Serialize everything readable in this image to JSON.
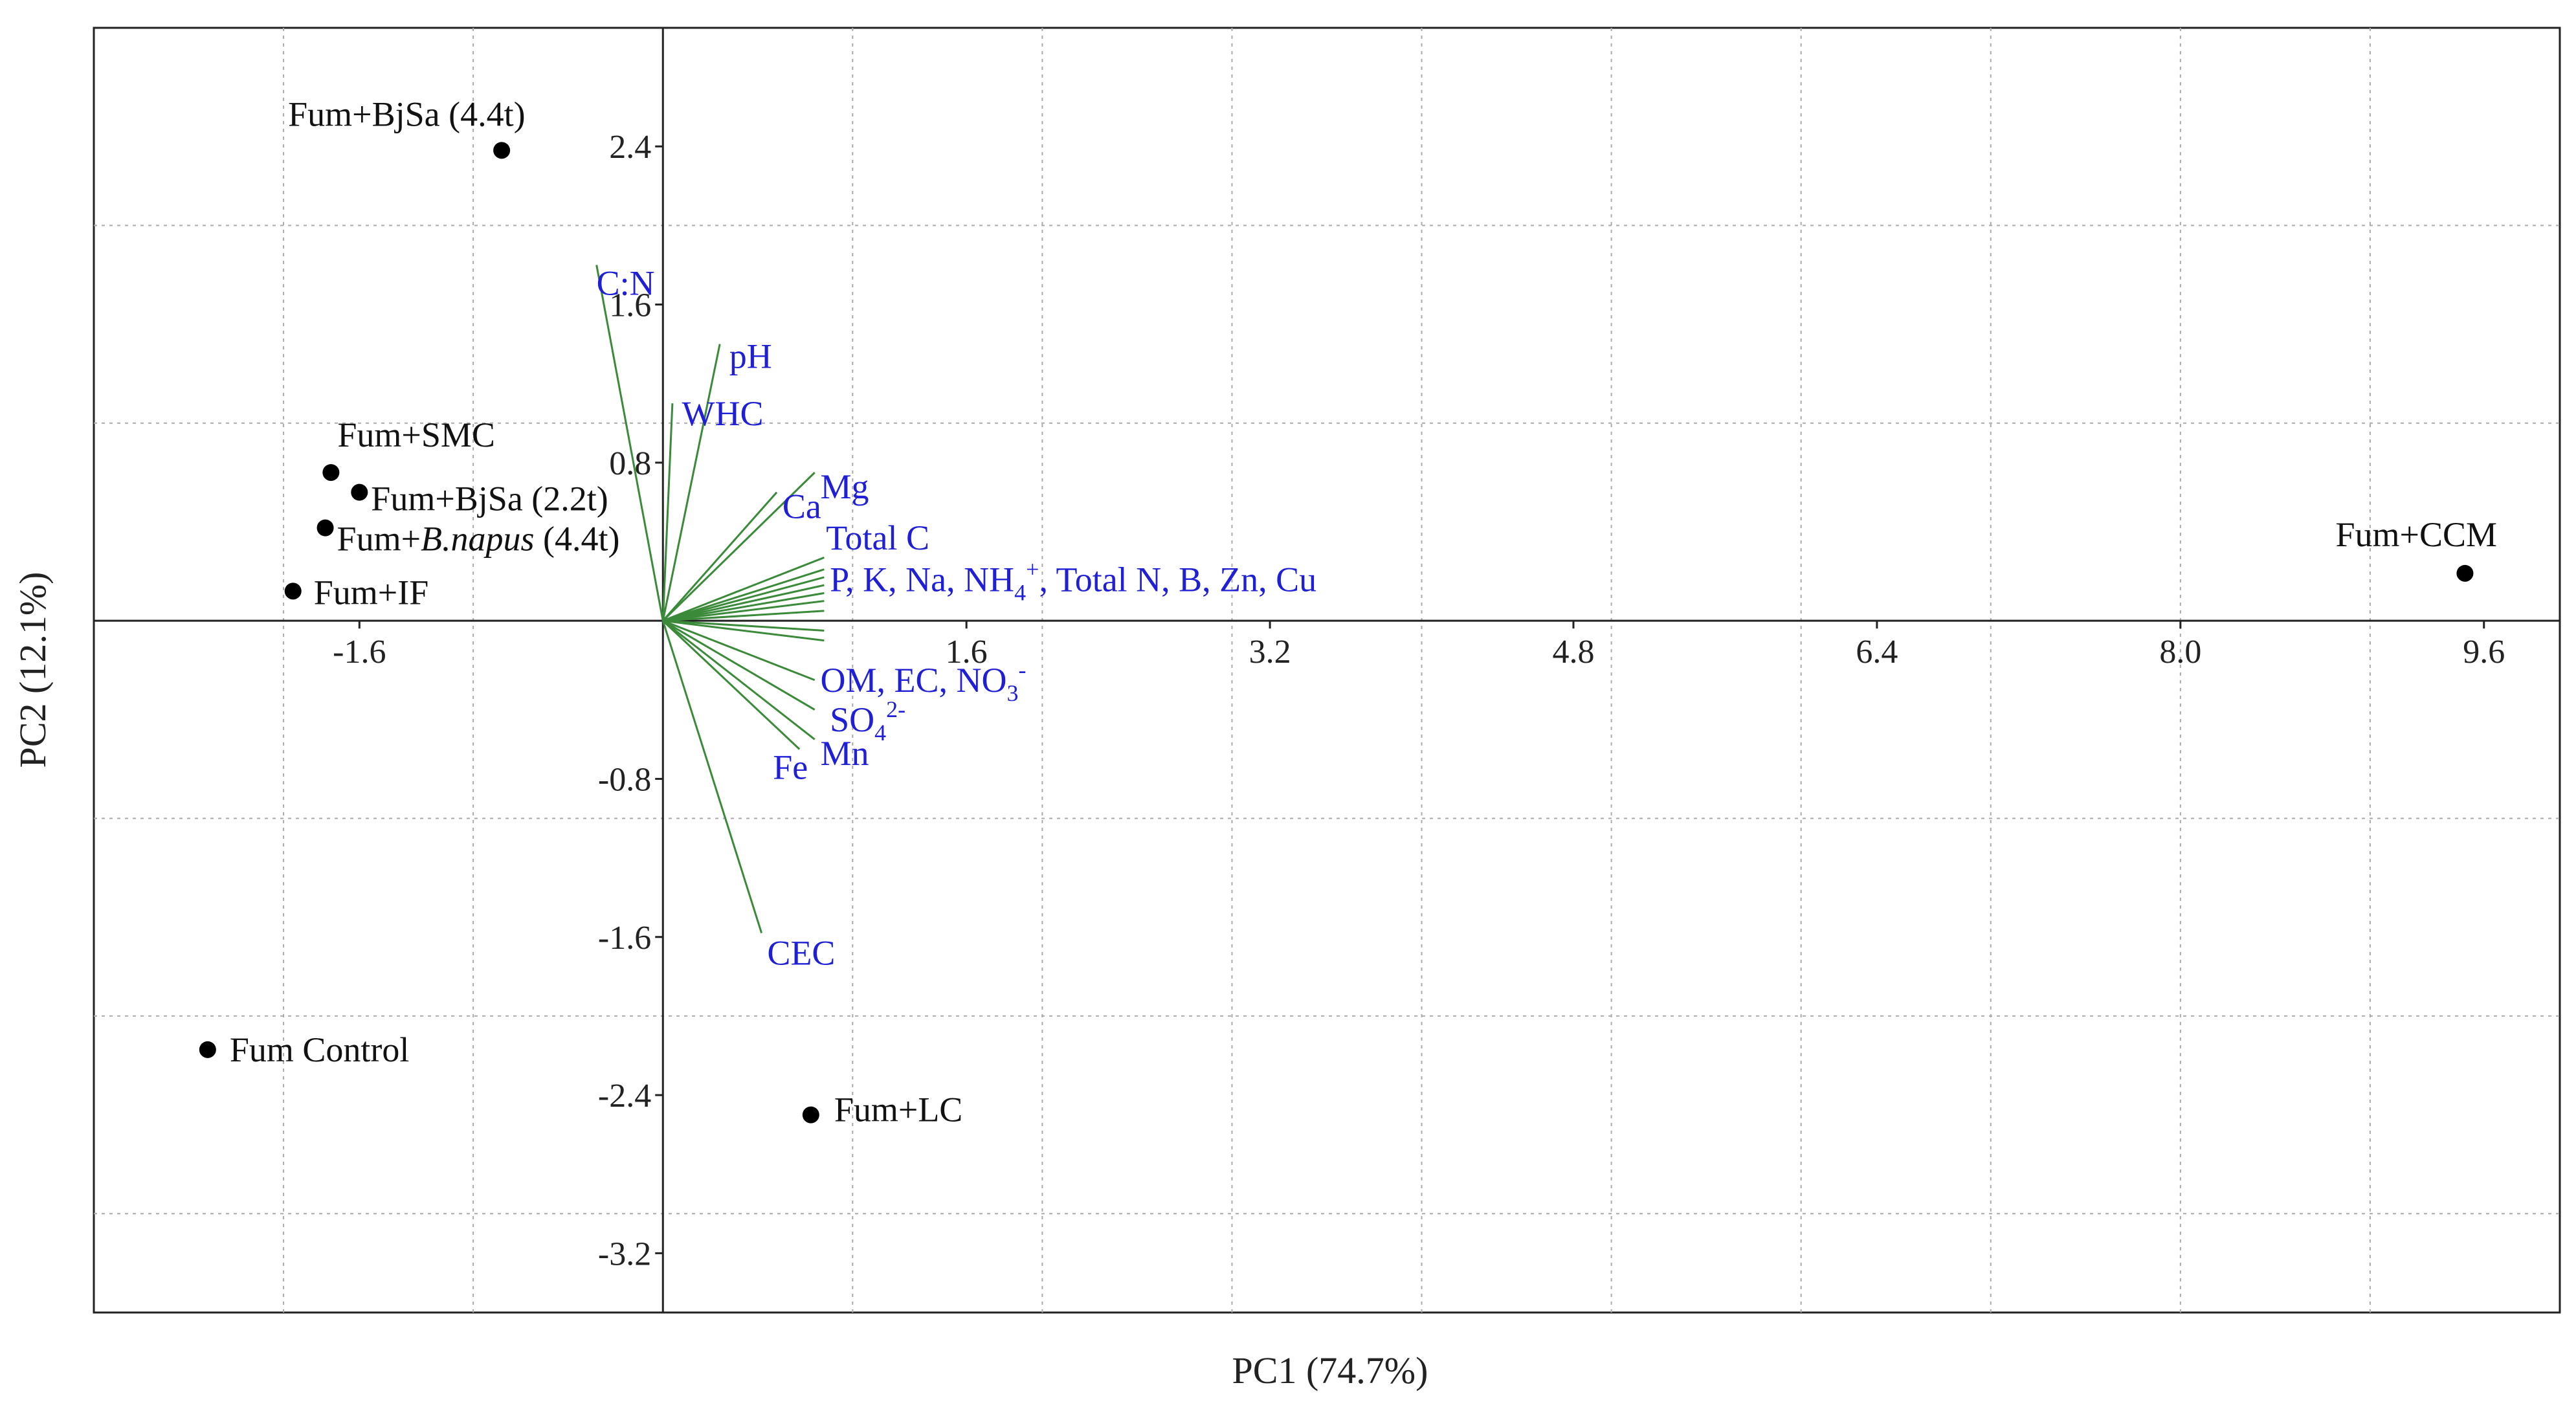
{
  "chart_data": {
    "type": "scatter",
    "subtype": "pca-biplot",
    "title": "",
    "xlabel": "PC1 (74.7%)",
    "ylabel": "PC2 (12.1%)",
    "xlim": [
      -3.0,
      10.0
    ],
    "ylim": [
      -3.5,
      3.0
    ],
    "grid": true,
    "x_ticks": [
      {
        "value": -1.6,
        "label": "-1.6"
      },
      {
        "value": 1.6,
        "label": "1.6"
      },
      {
        "value": 3.2,
        "label": "3.2"
      },
      {
        "value": 4.8,
        "label": "4.8"
      },
      {
        "value": 6.4,
        "label": "6.4"
      },
      {
        "value": 8.0,
        "label": "8.0"
      },
      {
        "value": 9.6,
        "label": "9.6"
      }
    ],
    "y_ticks": [
      {
        "value": 2.4,
        "label": "2.4"
      },
      {
        "value": 1.6,
        "label": "1.6"
      },
      {
        "value": 0.8,
        "label": "0.8"
      },
      {
        "value": -0.8,
        "label": "-0.8"
      },
      {
        "value": -1.6,
        "label": "-1.6"
      },
      {
        "value": -2.4,
        "label": "-2.4"
      },
      {
        "value": -3.2,
        "label": "-3.2"
      }
    ],
    "x_grid": [
      -2.0,
      -1.0,
      0.0,
      1.0,
      2.0,
      3.0,
      4.0,
      5.0,
      6.0,
      7.0,
      8.0,
      9.0
    ],
    "y_grid": [
      2.0,
      1.0,
      0.0,
      -1.0,
      -2.0,
      -3.0
    ],
    "points": [
      {
        "name": "Fum+BjSa (4.4t)",
        "x": -0.85,
        "y": 2.38
      },
      {
        "name": "Fum+SMC",
        "x": -1.75,
        "y": 0.75
      },
      {
        "name": "Fum+BjSa (2.2t)",
        "x": -1.6,
        "y": 0.65
      },
      {
        "name": "Fum+",
        "name_italic": "B.napus",
        "name_suffix": " (4.4t)",
        "x": -1.78,
        "y": 0.47
      },
      {
        "name": "Fum+IF",
        "x": -1.95,
        "y": 0.15
      },
      {
        "name": "Fum+CCM",
        "x": 9.5,
        "y": 0.24
      },
      {
        "name": "Fum Control",
        "x": -2.4,
        "y": -2.17
      },
      {
        "name": "Fum+LC",
        "x": 0.78,
        "y": -2.5
      }
    ],
    "vectors": [
      {
        "x": -0.35,
        "y": 1.8
      },
      {
        "x": 0.05,
        "y": 1.1
      },
      {
        "x": 0.3,
        "y": 1.4
      },
      {
        "x": 0.6,
        "y": 0.65
      },
      {
        "x": 0.8,
        "y": 0.75
      },
      {
        "x": 0.85,
        "y": 0.32
      },
      {
        "x": 0.85,
        "y": 0.26
      },
      {
        "x": 0.85,
        "y": 0.22
      },
      {
        "x": 0.85,
        "y": 0.18
      },
      {
        "x": 0.85,
        "y": 0.14
      },
      {
        "x": 0.85,
        "y": 0.1
      },
      {
        "x": 0.85,
        "y": 0.05
      },
      {
        "x": 0.85,
        "y": -0.05
      },
      {
        "x": 0.85,
        "y": -0.1
      },
      {
        "x": 0.8,
        "y": -0.3
      },
      {
        "x": 0.8,
        "y": -0.45
      },
      {
        "x": 0.8,
        "y": -0.6
      },
      {
        "x": 0.72,
        "y": -0.65
      },
      {
        "x": 0.52,
        "y": -1.58
      }
    ],
    "vector_labels": [
      {
        "text": "C:N",
        "x": -0.35,
        "y": 1.65
      },
      {
        "text": "pH",
        "x": 0.35,
        "y": 1.28
      },
      {
        "text": "WHC",
        "x": 0.1,
        "y": 0.99
      },
      {
        "text": "Mg",
        "x": 0.83,
        "y": 0.62
      },
      {
        "text": "Ca",
        "x": 0.63,
        "y": 0.52
      },
      {
        "text": "Total C",
        "x": 0.86,
        "y": 0.36
      },
      {
        "text": "P, K, Na, NH4+, Total N, B, Zn, Cu",
        "x": 0.88,
        "y": 0.15
      },
      {
        "text": "OM, EC, NO3-",
        "x": 0.83,
        "y": -0.36
      },
      {
        "text": "SO42-",
        "x": 0.88,
        "y": -0.56
      },
      {
        "text": "Mn",
        "x": 0.83,
        "y": -0.73
      },
      {
        "text": "Fe",
        "x": 0.58,
        "y": -0.8
      },
      {
        "text": "CEC",
        "x": 0.55,
        "y": -1.74
      }
    ],
    "colors": {
      "points": "#000000",
      "vectors": "#3a8a3a",
      "vector_labels": "#1f1fd6",
      "grid": "#aaaaaa",
      "frame": "#222222"
    }
  }
}
